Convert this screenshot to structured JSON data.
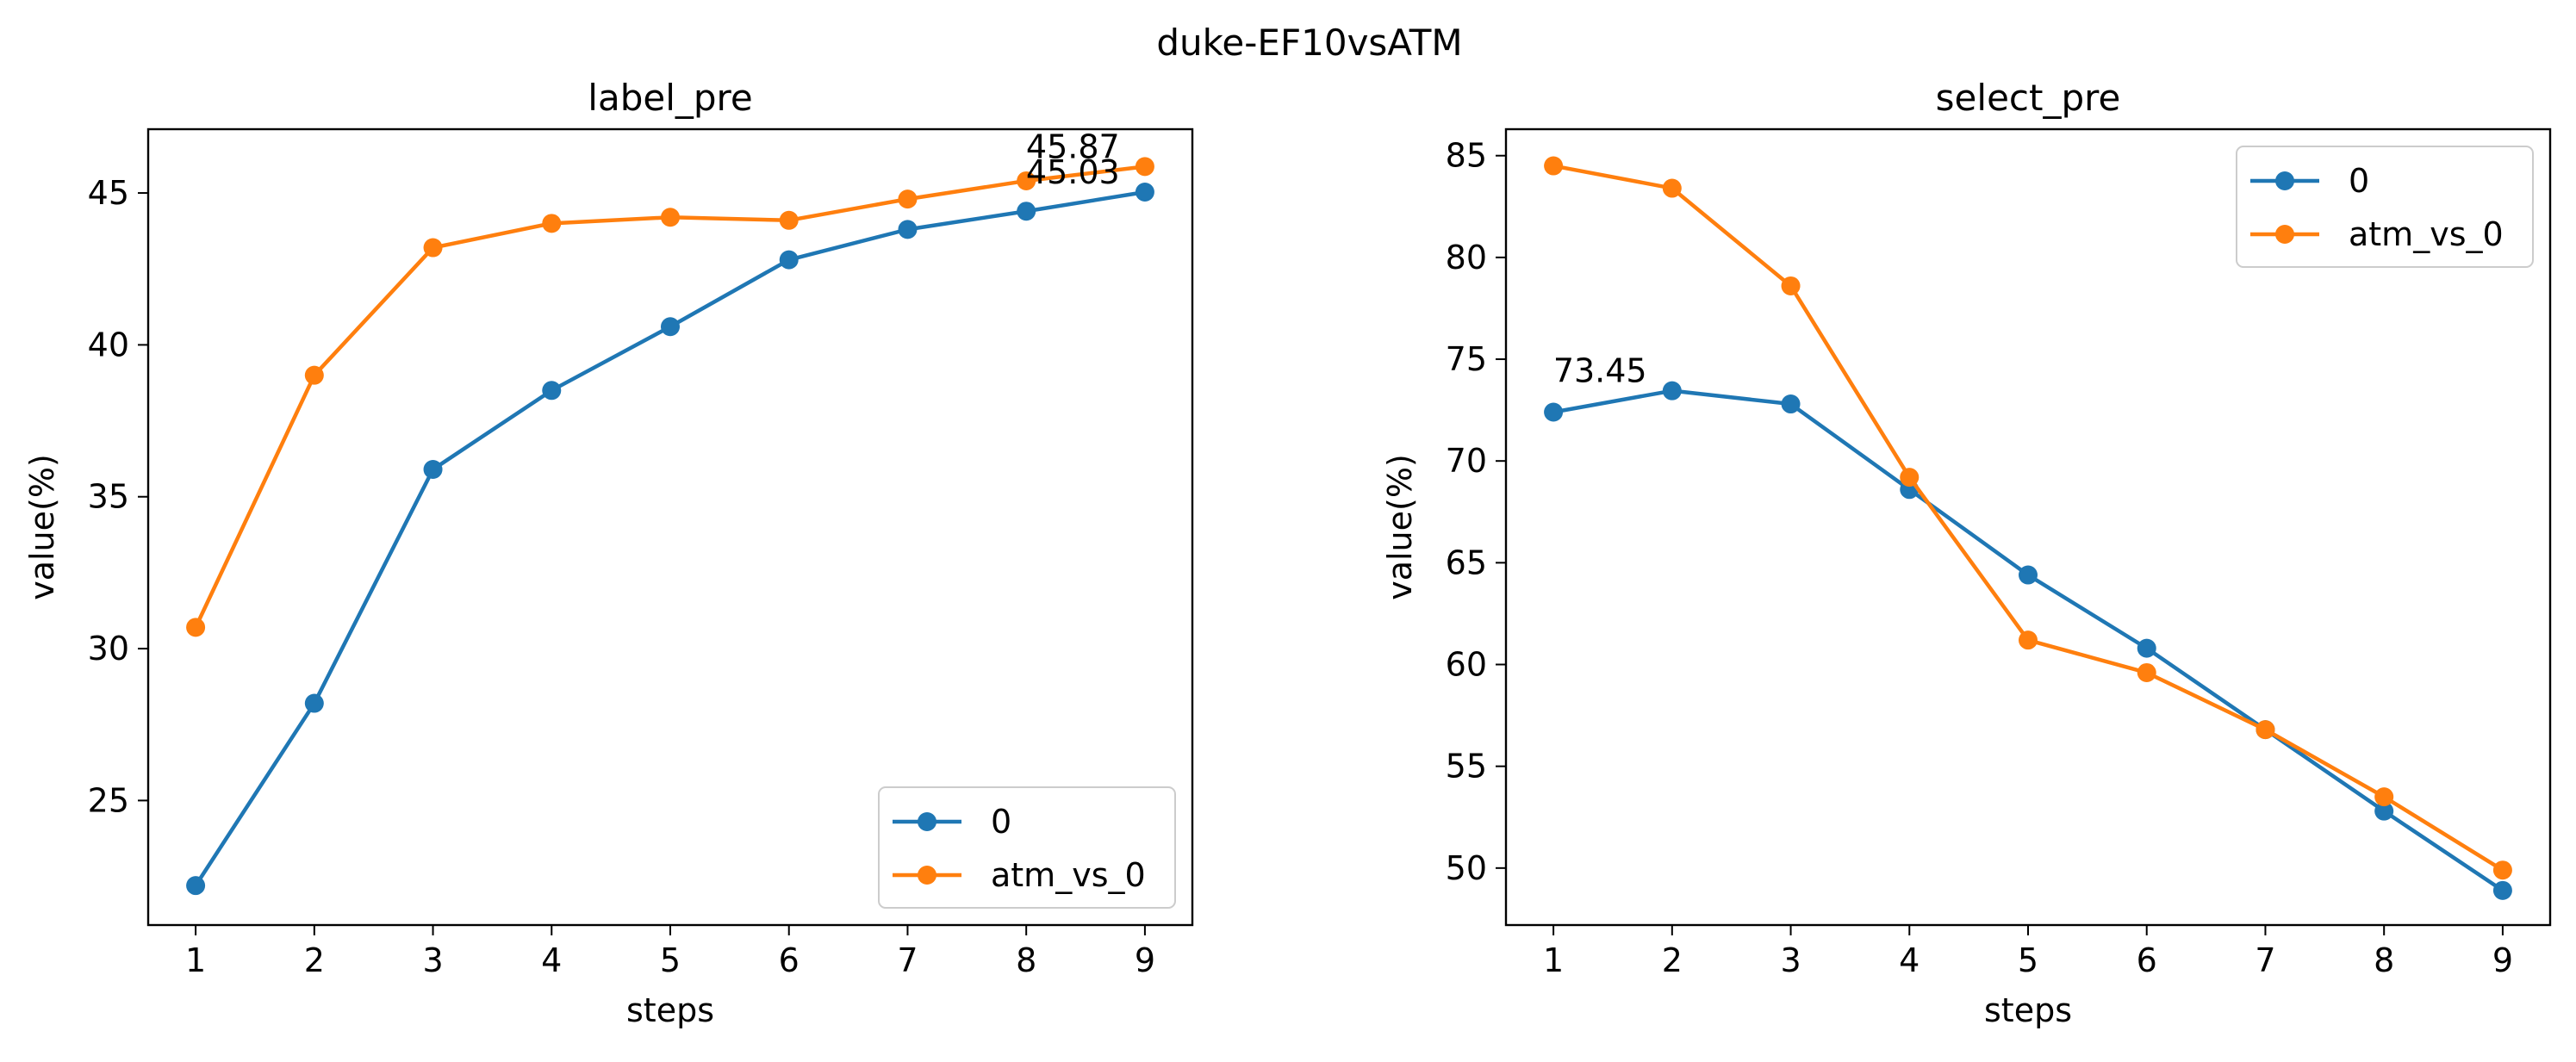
{
  "figure": {
    "title": "duke-EF10vsATM"
  },
  "colors": {
    "series0": "#1f77b4",
    "series1": "#ff7f0e"
  },
  "chart_data": [
    {
      "type": "line",
      "title": "label_pre",
      "xlabel": "steps",
      "ylabel": "value(%)",
      "x": [
        1,
        2,
        3,
        4,
        5,
        6,
        7,
        8,
        9
      ],
      "xticks": [
        1,
        2,
        3,
        4,
        5,
        6,
        7,
        8,
        9
      ],
      "yticks": [
        25,
        30,
        35,
        40,
        45
      ],
      "xlim": [
        0.6,
        9.4
      ],
      "ylim": [
        20.9,
        47.1
      ],
      "grid": false,
      "legend": "lower right",
      "series": [
        {
          "name": "0",
          "values": [
            22.2,
            28.2,
            35.9,
            38.5,
            40.6,
            42.8,
            43.8,
            44.4,
            45.03
          ]
        },
        {
          "name": "atm_vs_0",
          "values": [
            30.7,
            39.0,
            43.2,
            44.0,
            44.2,
            44.1,
            44.8,
            45.4,
            45.87
          ]
        }
      ],
      "annotations": [
        {
          "text": "45.87",
          "x": 9,
          "y": 45.87
        },
        {
          "text": "45.03",
          "x": 9,
          "y": 45.03
        }
      ]
    },
    {
      "type": "line",
      "title": "select_pre",
      "xlabel": "steps",
      "ylabel": "value(%)",
      "x": [
        1,
        2,
        3,
        4,
        5,
        6,
        7,
        8,
        9
      ],
      "xticks": [
        1,
        2,
        3,
        4,
        5,
        6,
        7,
        8,
        9
      ],
      "yticks": [
        50,
        55,
        60,
        65,
        70,
        75,
        80,
        85
      ],
      "xlim": [
        0.6,
        9.4
      ],
      "ylim": [
        47.2,
        86.3
      ],
      "grid": false,
      "legend": "upper right",
      "series": [
        {
          "name": "0",
          "values": [
            72.4,
            73.45,
            72.8,
            68.6,
            64.4,
            60.8,
            56.8,
            52.8,
            48.9
          ]
        },
        {
          "name": "atm_vs_0",
          "values": [
            84.5,
            83.4,
            78.6,
            69.2,
            61.2,
            59.6,
            56.8,
            53.5,
            49.9
          ]
        }
      ],
      "annotations": [
        {
          "text": "73.45",
          "x": 2,
          "y": 73.45
        }
      ]
    }
  ]
}
